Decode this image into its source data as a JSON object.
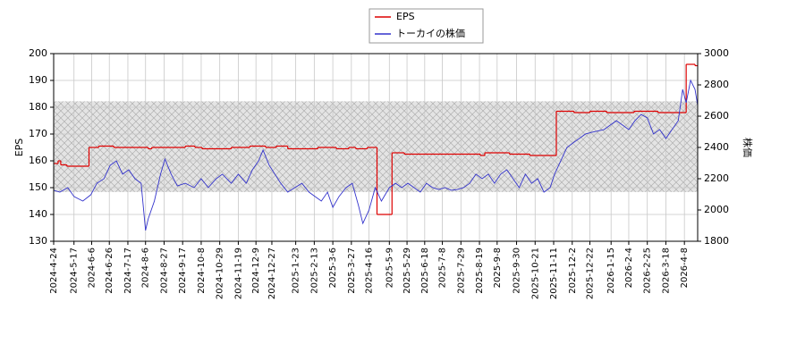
{
  "chart_data": {
    "type": "line",
    "series": [
      {
        "name": "EPS",
        "color": "#dd0000",
        "axis": "y",
        "step": true,
        "x": [
          "2024-4-24",
          "2024-4-29",
          "2024-5-2",
          "2024-5-9",
          "2024-6-3",
          "2024-6-14",
          "2024-7-1",
          "2024-8-9",
          "2024-8-13",
          "2024-9-20",
          "2024-10-1",
          "2024-10-9",
          "2024-11-11",
          "2024-12-2",
          "2024-12-20",
          "2025-1-1",
          "2025-1-14",
          "2025-2-17",
          "2025-3-10",
          "2025-3-24",
          "2025-4-1",
          "2025-4-14",
          "2025-4-25",
          "2025-5-12",
          "2025-5-26",
          "2025-8-20",
          "2025-8-25",
          "2025-9-22",
          "2025-10-15",
          "2025-11-14",
          "2025-12-4",
          "2025-12-22",
          "2026-1-10",
          "2026-2-10",
          "2026-3-9",
          "2026-4-10",
          "2026-4-20"
        ],
        "values": [
          159,
          160,
          158.5,
          158,
          165,
          165.5,
          165,
          164.5,
          165,
          165.5,
          165,
          164.5,
          165,
          165.5,
          165,
          165.5,
          164.5,
          165,
          164.5,
          165,
          164.5,
          165,
          140,
          163,
          162.5,
          162,
          163,
          162.5,
          162,
          178.5,
          178,
          178.5,
          178,
          178.5,
          178,
          196,
          195.5
        ]
      },
      {
        "name": "トーカイの株価",
        "color": "#3333cc",
        "axis": "y2",
        "x": [
          "2024-4-24",
          "2024-5-1",
          "2024-5-10",
          "2024-5-17",
          "2024-5-27",
          "2024-6-5",
          "2024-6-12",
          "2024-6-20",
          "2024-6-27",
          "2024-7-4",
          "2024-7-11",
          "2024-7-18",
          "2024-7-25",
          "2024-8-1",
          "2024-8-6",
          "2024-8-9",
          "2024-8-16",
          "2024-8-23",
          "2024-8-28",
          "2024-9-4",
          "2024-9-11",
          "2024-9-20",
          "2024-9-30",
          "2024-10-8",
          "2024-10-16",
          "2024-10-25",
          "2024-11-1",
          "2024-11-11",
          "2024-11-19",
          "2024-11-28",
          "2024-12-5",
          "2024-12-12",
          "2024-12-17",
          "2024-12-24",
          "2025-1-6",
          "2025-1-14",
          "2025-1-22",
          "2025-1-30",
          "2025-2-7",
          "2025-2-14",
          "2025-2-21",
          "2025-2-28",
          "2025-3-6",
          "2025-3-13",
          "2025-3-21",
          "2025-3-28",
          "2025-4-4",
          "2025-4-9",
          "2025-4-16",
          "2025-4-23",
          "2025-4-30",
          "2025-5-9",
          "2025-5-16",
          "2025-5-23",
          "2025-5-30",
          "2025-6-6",
          "2025-6-13",
          "2025-6-20",
          "2025-6-27",
          "2025-7-4",
          "2025-7-11",
          "2025-7-18",
          "2025-7-25",
          "2025-8-1",
          "2025-8-8",
          "2025-8-15",
          "2025-8-22",
          "2025-8-29",
          "2025-9-5",
          "2025-9-12",
          "2025-9-19",
          "2025-9-26",
          "2025-10-3",
          "2025-10-10",
          "2025-10-17",
          "2025-10-24",
          "2025-10-31",
          "2025-11-7",
          "2025-11-12",
          "2025-11-19",
          "2025-11-26",
          "2025-12-3",
          "2025-12-10",
          "2025-12-17",
          "2025-12-24",
          "2026-1-7",
          "2026-1-14",
          "2026-1-21",
          "2026-1-28",
          "2026-2-4",
          "2026-2-11",
          "2026-2-18",
          "2026-2-25",
          "2026-3-4",
          "2026-3-11",
          "2026-3-18",
          "2026-3-25",
          "2026-4-1",
          "2026-4-6",
          "2026-4-10",
          "2026-4-15",
          "2026-4-20",
          "2026-4-23"
        ],
        "values": [
          2126,
          2114,
          2143,
          2086,
          2057,
          2097,
          2171,
          2200,
          2286,
          2314,
          2229,
          2257,
          2200,
          2171,
          1869,
          1943,
          2057,
          2229,
          2326,
          2229,
          2154,
          2171,
          2143,
          2200,
          2143,
          2200,
          2229,
          2171,
          2229,
          2171,
          2257,
          2314,
          2383,
          2286,
          2171,
          2114,
          2143,
          2171,
          2114,
          2086,
          2057,
          2114,
          2017,
          2086,
          2143,
          2171,
          2029,
          1914,
          2000,
          2143,
          2057,
          2143,
          2171,
          2143,
          2171,
          2143,
          2114,
          2171,
          2143,
          2131,
          2143,
          2126,
          2131,
          2143,
          2171,
          2229,
          2200,
          2229,
          2171,
          2229,
          2257,
          2200,
          2143,
          2229,
          2171,
          2200,
          2114,
          2143,
          2229,
          2314,
          2400,
          2429,
          2457,
          2486,
          2497,
          2514,
          2543,
          2571,
          2543,
          2514,
          2571,
          2611,
          2589,
          2486,
          2514,
          2457,
          2514,
          2571,
          2771,
          2686,
          2829,
          2771,
          2669
        ]
      }
    ],
    "xlim": [
      "2024-4-24",
      "2026-4-23"
    ],
    "xticks": [
      "2024-4-24",
      "2024-5-17",
      "2024-6-6",
      "2024-6-26",
      "2024-7-17",
      "2024-8-6",
      "2024-8-27",
      "2024-9-17",
      "2024-10-8",
      "2024-10-29",
      "2024-11-19",
      "2024-12-9",
      "2024-12-27",
      "2025-1-23",
      "2025-2-13",
      "2025-3-6",
      "2025-3-27",
      "2025-4-16",
      "2025-5-9",
      "2025-5-29",
      "2025-6-18",
      "2025-7-8",
      "2025-7-29",
      "2025-8-19",
      "2025-9-8",
      "2025-9-30",
      "2025-10-21",
      "2025-11-11",
      "2025-12-2",
      "2025-12-22",
      "2026-1-15",
      "2026-2-4",
      "2026-2-25",
      "2026-3-18",
      "2026-4-8"
    ],
    "ylabel": "EPS",
    "ylim": [
      130,
      200
    ],
    "yticks": [
      130,
      140,
      150,
      160,
      170,
      180,
      190,
      200
    ],
    "y2label": "株価",
    "y2lim": [
      1800,
      3000
    ],
    "y2ticks": [
      1800,
      2000,
      2200,
      2400,
      2600,
      2800,
      3000
    ],
    "shaded_band_y2": [
      2115,
      2695
    ],
    "grid": true,
    "legend": "top"
  }
}
